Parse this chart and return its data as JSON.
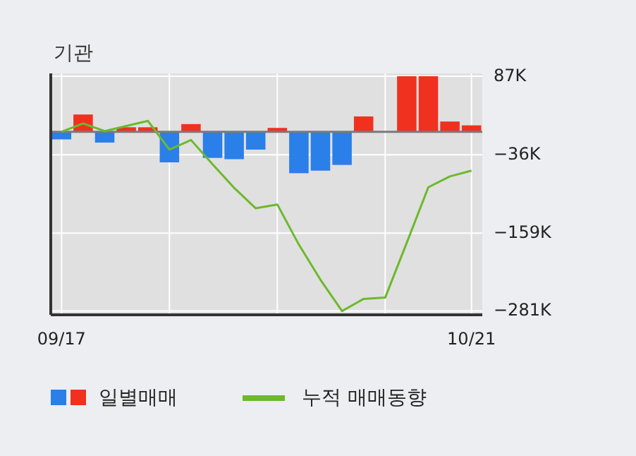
{
  "chart_data": {
    "type": "bar",
    "title": "기관",
    "categories": [
      "09/17",
      null,
      null,
      null,
      null,
      null,
      null,
      null,
      null,
      null,
      null,
      null,
      null,
      null,
      null,
      null,
      null,
      null,
      null,
      "10/21"
    ],
    "series": [
      {
        "name": "일별매매",
        "colors": [
          "#2a7fe8",
          "#f0311f",
          "#2a7fe8",
          "#f0311f",
          "#f0311f",
          "#2a7fe8",
          "#f0311f",
          "#2a7fe8",
          "#2a7fe8",
          "#2a7fe8",
          "#f0311f",
          "#2a7fe8",
          "#2a7fe8",
          "#2a7fe8",
          "#f0311f",
          "#f0311f",
          "#f0311f",
          "#f0311f",
          "#f0311f",
          "#f0311f"
        ],
        "values": [
          -12,
          27,
          -17,
          7,
          7,
          -48,
          12,
          -41,
          -43,
          -28,
          6,
          -65,
          -61,
          -52,
          24,
          0,
          87,
          87,
          16,
          10
        ]
      },
      {
        "name": "누적 매매동향",
        "type": "line",
        "color": "#6cb92d",
        "values": [
          0,
          13,
          1,
          9,
          17,
          -28,
          -13,
          -51,
          -88,
          -120,
          -114,
          -177,
          -232,
          -281,
          -262,
          -260,
          -174,
          -87,
          -70,
          -61
        ]
      }
    ],
    "ylim": [
      -287,
      87
    ],
    "yticks": [
      {
        "value": 87,
        "label": "87K"
      },
      {
        "value": -36,
        "label": "−36K"
      },
      {
        "value": -159,
        "label": "−159K"
      },
      {
        "value": -281,
        "label": "−281K"
      }
    ],
    "grid": true,
    "legend": "bottom"
  }
}
